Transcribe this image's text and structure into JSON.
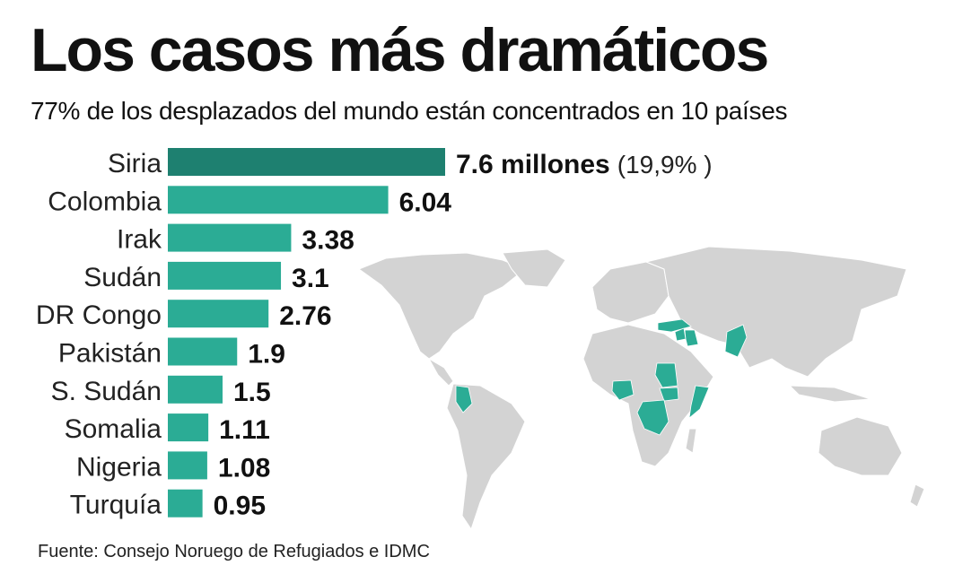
{
  "chart_data": {
    "type": "bar",
    "orientation": "horizontal",
    "title": "Los casos más dramáticos",
    "subtitle": "77% de los desplazados del mundo están concentrados en 10 países",
    "categories": [
      "Siria",
      "Colombia",
      "Irak",
      "Sudán",
      "DR Congo",
      "Pakistán",
      "S. Sudán",
      "Somalia",
      "Nigeria",
      "Turquía"
    ],
    "values": [
      7.6,
      6.04,
      3.38,
      3.1,
      2.76,
      1.9,
      1.5,
      1.11,
      1.08,
      0.95
    ],
    "value_labels": [
      "7.6 millones",
      "6.04",
      "3.38",
      "3.1",
      "2.76",
      "1.9",
      "1.5",
      "1.11",
      "1.08",
      "0.95"
    ],
    "first_annotation": "(19,9% )",
    "unit": "millones",
    "xlim": [
      0,
      7.6
    ],
    "grid": false,
    "colors": {
      "highlight": "#1e8070",
      "bar": "#2bac95",
      "map_land": "#d3d3d3",
      "map_highlight": "#2bac95"
    },
    "source": "Fuente: Consejo Noruego de Refugiados e IDMC"
  }
}
